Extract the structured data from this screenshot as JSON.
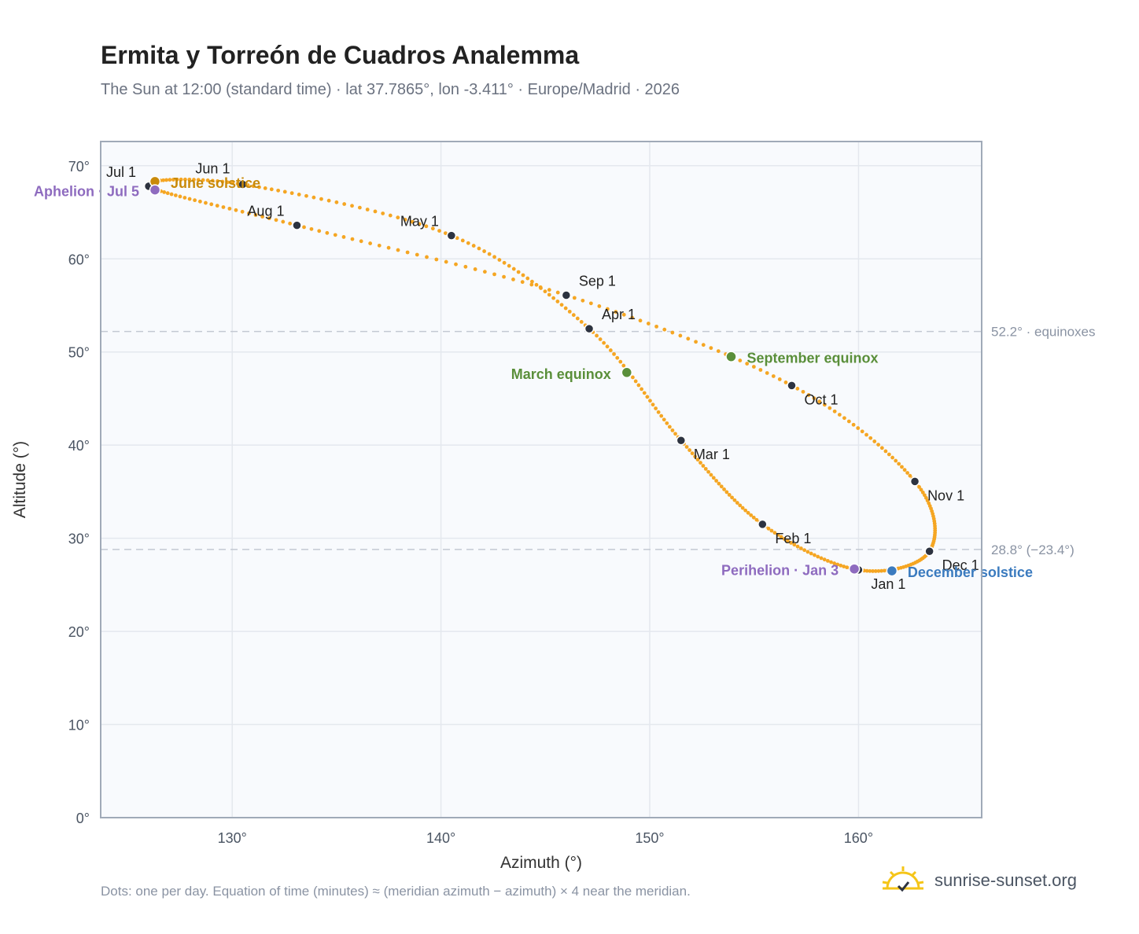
{
  "header": {
    "title": "Ermita y Torreón de Cuadros Analemma",
    "subtitle": "The Sun at 12:00 (standard time) · lat 37.7865°, lon -3.411° · Europe/Madrid · 2026"
  },
  "footer": {
    "note": "Dots: one per day. Equation of time (minutes) ≈ (meridian azimuth − azimuth) × 4 near the meridian.",
    "brand": "sunrise-sunset.org"
  },
  "colors": {
    "curve": "#f5a623",
    "month_dot": "#2d3340",
    "solstice_june": "#c98a0a",
    "equinox": "#5a8f3a",
    "solstice_december": "#3b7bbf",
    "apsis": "#8e6bbf",
    "plot_bg": "#f8fafd",
    "grid": "#e4e8ee",
    "frame": "#a0aab8"
  },
  "chart_data": {
    "type": "scatter",
    "title": "Ermita y Torreón de Cuadros Analemma",
    "xlabel": "Azimuth (°)",
    "ylabel": "Altitude (°)",
    "xlim": [
      123.7,
      165.9
    ],
    "ylim": [
      0,
      72.6
    ],
    "x_ticks": [
      {
        "value": 130,
        "label": "130°"
      },
      {
        "value": 140,
        "label": "140°"
      },
      {
        "value": 150,
        "label": "150°"
      },
      {
        "value": 160,
        "label": "160°"
      }
    ],
    "y_ticks": [
      {
        "value": 0,
        "label": "0°"
      },
      {
        "value": 10,
        "label": "10°"
      },
      {
        "value": 20,
        "label": "20°"
      },
      {
        "value": 30,
        "label": "30°"
      },
      {
        "value": 40,
        "label": "40°"
      },
      {
        "value": 50,
        "label": "50°"
      },
      {
        "value": 60,
        "label": "60°"
      },
      {
        "value": 70,
        "label": "70°"
      }
    ],
    "grid": true,
    "reference_lines": [
      {
        "y": 52.2,
        "label": "52.2° · equinoxes"
      },
      {
        "y": 28.8,
        "label": "28.8° (−23.4°)"
      }
    ],
    "months": [
      {
        "label": "Jan 1",
        "az": 160.0,
        "alt": 26.6
      },
      {
        "label": "Feb 1",
        "az": 155.4,
        "alt": 31.5
      },
      {
        "label": "Mar 1",
        "az": 151.5,
        "alt": 40.5
      },
      {
        "label": "Apr 1",
        "az": 147.1,
        "alt": 52.5
      },
      {
        "label": "May 1",
        "az": 140.5,
        "alt": 62.5
      },
      {
        "label": "Jun 1",
        "az": 130.5,
        "alt": 68.0
      },
      {
        "label": "Jul 1",
        "az": 126.0,
        "alt": 67.8
      },
      {
        "label": "Aug 1",
        "az": 133.1,
        "alt": 63.6
      },
      {
        "label": "Sep 1",
        "az": 146.0,
        "alt": 56.1
      },
      {
        "label": "Oct 1",
        "az": 156.8,
        "alt": 46.4
      },
      {
        "label": "Nov 1",
        "az": 162.7,
        "alt": 36.1
      },
      {
        "label": "Dec 1",
        "az": 163.4,
        "alt": 28.6
      }
    ],
    "events": [
      {
        "label": "June solstice",
        "az": 126.3,
        "alt": 68.3,
        "color": "#c98a0a"
      },
      {
        "label": "March equinox",
        "az": 148.9,
        "alt": 47.8,
        "color": "#5a8f3a"
      },
      {
        "label": "September equinox",
        "az": 153.9,
        "alt": 49.5,
        "color": "#5a8f3a"
      },
      {
        "label": "December solstice",
        "az": 161.6,
        "alt": 26.5,
        "color": "#3b7bbf"
      },
      {
        "label": "Aphelion · Jul 5",
        "az": 126.3,
        "alt": 67.4,
        "color": "#8e6bbf"
      },
      {
        "label": "Perihelion · Jan 3",
        "az": 159.8,
        "alt": 26.7,
        "color": "#8e6bbf"
      }
    ]
  }
}
